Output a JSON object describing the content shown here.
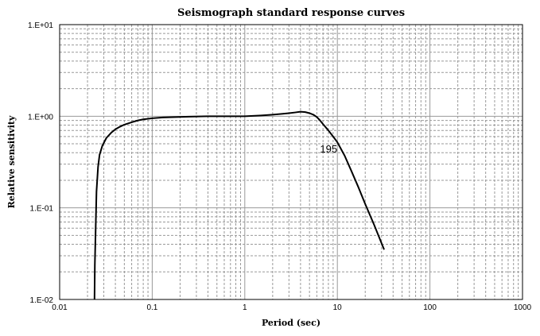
{
  "chart_data": {
    "type": "line",
    "title": "Seismograph standard response curves",
    "xlabel": "Period (sec)",
    "ylabel": "Relative sensitivity",
    "xscale": "log",
    "yscale": "log",
    "xlim": [
      0.01,
      1000
    ],
    "ylim": [
      0.01,
      10
    ],
    "grid": true,
    "x_ticks": [
      {
        "value": 0.01,
        "label": "0.01"
      },
      {
        "value": 0.1,
        "label": "0.1"
      },
      {
        "value": 1,
        "label": "1"
      },
      {
        "value": 10,
        "label": "10"
      },
      {
        "value": 100,
        "label": "100"
      },
      {
        "value": 1000,
        "label": "1000"
      }
    ],
    "y_ticks": [
      {
        "value": 0.01,
        "label": "1.E-02"
      },
      {
        "value": 0.1,
        "label": "1.E-01"
      },
      {
        "value": 1,
        "label": "1.E+00"
      },
      {
        "value": 10,
        "label": "1.E+01"
      }
    ],
    "series": [
      {
        "x": [
          0.0238,
          0.024,
          0.0245,
          0.025,
          0.026,
          0.027,
          0.029,
          0.032,
          0.036,
          0.04,
          0.045,
          0.05,
          0.06,
          0.07,
          0.08,
          0.1,
          0.13,
          0.18,
          0.25,
          0.4,
          0.6,
          1.0,
          1.5,
          2.0,
          2.5,
          3.0,
          3.5,
          4.0,
          4.5,
          5.0,
          5.5,
          6.0,
          6.5,
          7.0,
          8.0,
          9.0,
          10.0,
          12.0,
          14.0,
          17.0,
          20.0,
          25.0,
          32.0
        ],
        "y": [
          0.01,
          0.024,
          0.06,
          0.15,
          0.28,
          0.38,
          0.48,
          0.58,
          0.66,
          0.72,
          0.77,
          0.81,
          0.86,
          0.9,
          0.925,
          0.95,
          0.97,
          0.98,
          0.99,
          1.0,
          1.0,
          1.0,
          1.02,
          1.04,
          1.06,
          1.08,
          1.1,
          1.12,
          1.11,
          1.08,
          1.04,
          0.98,
          0.9,
          0.82,
          0.7,
          0.6,
          0.52,
          0.37,
          0.26,
          0.165,
          0.11,
          0.065,
          0.035
        ],
        "color": "#000000"
      }
    ],
    "annotations": [
      {
        "text": "195",
        "x": 6.5,
        "y": 0.4
      }
    ]
  }
}
